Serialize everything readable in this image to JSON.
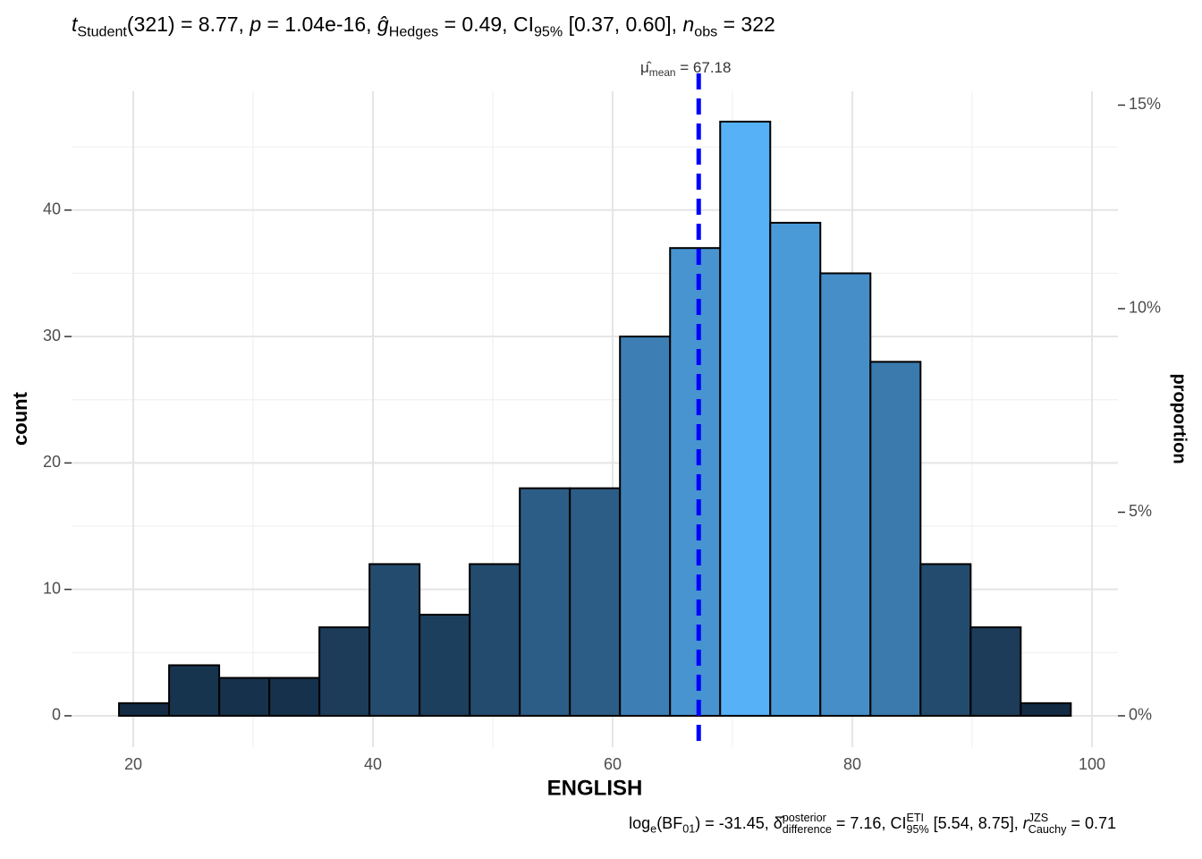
{
  "chart_data": {
    "type": "histogram",
    "title_parts": [
      "t",
      "Student",
      "(321) = 8.77, ",
      "p",
      " = 1.04e-16, ",
      "ĝ",
      "Hedges",
      " = 0.49, CI",
      "95%",
      " [0.37, 0.60], ",
      "n",
      "obs",
      " = 322"
    ],
    "caption_parts": [
      "log",
      "e",
      "(BF",
      "01",
      ") = -31.45, ",
      "δ̂",
      "posterior",
      "difference",
      " = 7.16, CI",
      "ETI",
      "95%",
      " [5.54, 8.75], ",
      "r",
      "JZS",
      "Cauchy",
      " = 0.71"
    ],
    "x_label": "ENGLISH",
    "y_label": "count",
    "y2_label": "proportion",
    "bins": [
      18.81,
      22.99,
      27.17,
      31.35,
      35.53,
      39.71,
      43.89,
      48.07,
      52.25,
      56.43,
      60.61,
      64.79,
      68.97,
      73.15,
      77.33,
      81.51,
      85.69,
      89.87,
      94.05,
      98.23
    ],
    "values": [
      1,
      4,
      3,
      3,
      7,
      12,
      8,
      12,
      18,
      18,
      30,
      37,
      47,
      39,
      35,
      28,
      12,
      7,
      1
    ],
    "color_low": "#132B43",
    "color_high": "#56B1F7",
    "edge_color": "#000000",
    "mean": {
      "value": 67.18,
      "label_parts": [
        "μ̂",
        "mean",
        " = 67.18"
      ],
      "color": "#0000ff"
    },
    "xlim": [
      14.85,
      102.16
    ],
    "xticks": [
      20,
      40,
      60,
      80,
      100
    ],
    "xminor": [
      30,
      50,
      70,
      90
    ],
    "ylim": [
      -2.48,
      49.4
    ],
    "yticks": [
      0,
      10,
      20,
      30,
      40
    ],
    "yminor": [
      5,
      15,
      25,
      35,
      45
    ],
    "y2lim": [
      -0.77,
      15.34
    ],
    "y2ticks": [
      {
        "value": 0,
        "label": "0%"
      },
      {
        "value": 5,
        "label": "5%"
      },
      {
        "value": 10,
        "label": "10%"
      },
      {
        "value": 15,
        "label": "15%"
      }
    ],
    "grid": true
  }
}
